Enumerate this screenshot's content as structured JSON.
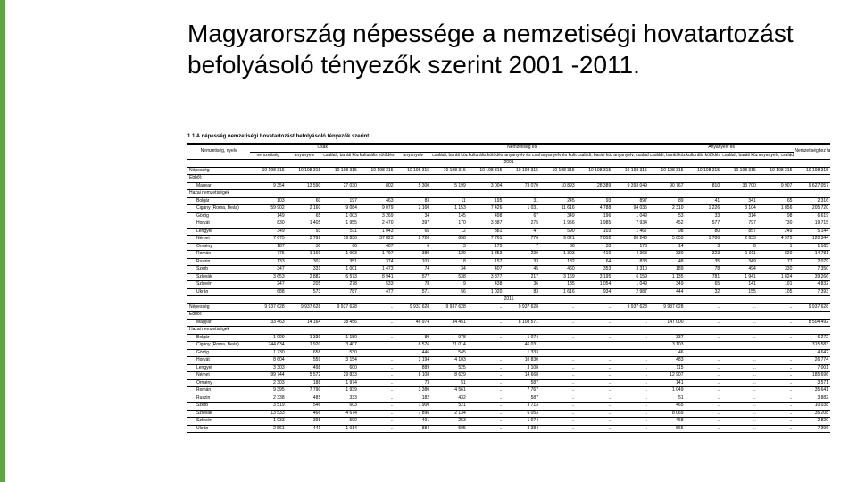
{
  "title": "Magyarország népessége a nemzetiségi hovatartozást befolyásoló tényezők szerint 2001 -2011.",
  "accent_color": "#5ba843",
  "table": {
    "caption": "1.1 A népesség nemzetiségi hovatartozást befolyásoló tényezők szerint",
    "head": {
      "group": "Nemzetiség, nyelv",
      "sections": [
        "Csak",
        "Nemzetiség és",
        "Anyanyelv és"
      ],
      "total": "Nemzetiséghez tartozó",
      "subcols": [
        "nemzetiség",
        "anyanyelv",
        "családi, baráti közösségben használt nyelv",
        "kulturális kötődés",
        "anyanyelv",
        "családi, baráti közösségben használt nyelv",
        "kulturális kötődés",
        "anyanyelv és családi, baráti közösségben használt nyelv",
        "anyanyelv és kulturális kötődés",
        "családi, baráti közösségben használt nyelv és kulturális kötődés",
        "anyanyelv, családi, baráti közösségben használt nyelv és kulturális kötődés",
        "családi, baráti közösségben használt nyelv",
        "kulturális kötődés",
        "családi, baráti közösségben használt nyelv és kulturális kötődés",
        "anyanyelv, családi, baráti közösségben használt nyelv és kulturális kötődés"
      ]
    },
    "years": [
      "2001",
      "2011"
    ],
    "blocks": [
      {
        "year": "2001",
        "totalRow": {
          "label": "Népesség",
          "vals": [
            "10 198 315",
            "10 198 315",
            "10 198 315",
            "10 198 315",
            "10 198 315",
            "10 198 315",
            "10 198 315",
            "10 198 315",
            "10 198 315",
            "10 198 315",
            "10 198 315",
            "10 198 315",
            "10 198 315",
            "10 198 315",
            "10 198 315",
            "10 198 315"
          ]
        },
        "subhead": "Ebből:",
        "magyar": {
          "label": "Magyar",
          "vals": [
            "9 354",
            "13 590",
            "27 030",
            "802",
            "5 300",
            "5 199",
            "3 004",
            "73 070",
            "10 893",
            "28 389",
            "9 393 049",
            "90 767",
            "810",
            "33 700",
            "9 907",
            "9 627 057"
          ]
        },
        "groupLabel": "Hazai nemzetiségek",
        "rows": [
          {
            "label": "Bolgár",
            "vals": [
              "103",
              "60",
              "197",
              "463",
              "83",
              "11",
              "195",
              "31",
              "245",
              "93",
              "897",
              "89",
              "41",
              "341",
              "65",
              "2 316"
            ]
          },
          {
            "label": "Cigány (Roma, Beás)",
            "vals": [
              "59 902",
              "2 160",
              "9 084",
              "9 079",
              "2 160",
              "1 153",
              "7 426",
              "1 031",
              "11 616",
              "4 788",
              "94 035",
              "2 310",
              "1 226",
              "3 104",
              "1 856",
              "205 720"
            ]
          },
          {
            "label": "Görög",
            "vals": [
              "149",
              "65",
              "1 003",
              "3 269",
              "34",
              "145",
              "498",
              "67",
              "349",
              "196",
              "1 049",
              "53",
              "33",
              "314",
              "98",
              "6 619"
            ]
          },
          {
            "label": "Horvát",
            "vals": [
              "830",
              "1 405",
              "1 955",
              "2 470",
              "397",
              "170",
              "3 887",
              "275",
              "1 956",
              "1 985",
              "7 934",
              "452",
              "577",
              "797",
              "730",
              "19 715"
            ]
          },
          {
            "label": "Lengyel",
            "vals": [
              "349",
              "93",
              "511",
              "1 043",
              "65",
              "12",
              "381",
              "47",
              "590",
              "103",
              "1 467",
              "98",
              "80",
              "857",
              "249",
              "5 144"
            ]
          },
          {
            "label": "Német",
            "vals": [
              "7 675",
              "3 792",
              "19 830",
              "37 823",
              "2 720",
              "858",
              "7 761",
              "776",
              "9 021",
              "7 052",
              "20 240",
              "5 053",
              "1 700",
              "2 633",
              "4 975",
              "120 344"
            ]
          },
          {
            "label": "Örmény",
            "vals": [
              "187",
              "30",
              "66",
              "407",
              "6",
              "3",
              "175",
              "7",
              "30",
              "33",
              "173",
              "14",
              "3",
              "8",
              "1",
              "1 165"
            ]
          },
          {
            "label": "Román",
            "vals": [
              "775",
              "1 169",
              "1 093",
              "1 797",
              "380",
              "129",
              "1 353",
              "230",
              "1 303",
              "410",
              "4 363",
              "330",
              "323",
              "1 011",
              "820",
              "14 781"
            ]
          },
          {
            "label": "Ruszin",
            "vals": [
              "133",
              "307",
              "351",
              "374",
              "103",
              "18",
              "157",
              "33",
              "182",
              "64",
              "833",
              "48",
              "35",
              "349",
              "77",
              "2 079"
            ]
          },
          {
            "label": "Szerb",
            "vals": [
              "347",
              "331",
              "1 001",
              "1 473",
              "74",
              "34",
              "407",
              "45",
              "460",
              "353",
              "3 310",
              "189",
              "78",
              "494",
              "330",
              "7 350"
            ]
          },
          {
            "label": "Szlovák",
            "vals": [
              "3 653",
              "2 882",
              "6 573",
              "8 941",
              "577",
              "538",
              "3 877",
              "217",
              "3 169",
              "3 195",
              "6 159",
              "1 135",
              "781",
              "1 941",
              "1 824",
              "39 266"
            ]
          },
          {
            "label": "Szlovén",
            "vals": [
              "247",
              "205",
              "278",
              "533",
              "78",
              "9",
              "438",
              "36",
              "185",
              "1 054",
              "1 049",
              "349",
              "65",
              "141",
              "101",
              "4 832"
            ]
          },
          {
            "label": "Ukrán",
            "vals": [
              "688",
              "573",
              "787",
              "477",
              "571",
              "56",
              "1 020",
              "83",
              "1 616",
              "934",
              "2 987",
              "444",
              "32",
              "155",
              "105",
              "7 393"
            ]
          }
        ]
      },
      {
        "year": "2011",
        "totalRow": {
          "label": "Népesség",
          "vals": [
            "9 937 628",
            "9 937 628",
            "9 937 628",
            "..",
            "9 937 628",
            "9 937 628",
            "..",
            "9 937 628",
            "..",
            "..",
            "9 937 628",
            "9 937 628",
            "..",
            "..",
            "..",
            "9 937 628"
          ]
        },
        "subhead": "Ebből:",
        "magyar": {
          "label": "Magyar",
          "vals": [
            "33 463",
            "14 164",
            "38 456",
            "..",
            "46 974",
            "34 451",
            "..",
            "8 108 571",
            "..",
            "..",
            "..",
            "147 000",
            "..",
            "..",
            "..",
            "8 504 492"
          ]
        },
        "groupLabel": "Hazai nemzetiségek",
        "rows": [
          {
            "label": "Bolgár",
            "vals": [
              "1 099",
              "1 339",
              "1 180",
              "..",
              "80",
              "978",
              "..",
              "1 074",
              "..",
              "..",
              "..",
              "337",
              "..",
              "..",
              "..",
              "6 272"
            ]
          },
          {
            "label": "Cigány (Roma, Beás)",
            "vals": [
              "244 634",
              "1 920",
              "3 407",
              "..",
              "8 576",
              "21 014",
              "..",
              "46 031",
              "..",
              "..",
              "..",
              "3 103",
              "..",
              "..",
              "..",
              "315 583"
            ]
          },
          {
            "label": "Görög",
            "vals": [
              "1 730",
              "658",
              "530",
              "..",
              "446",
              "545",
              "..",
              "1 333",
              "..",
              "..",
              "..",
              "46",
              "..",
              "..",
              "..",
              "4 642"
            ]
          },
          {
            "label": "Horvát",
            "vals": [
              "8 604",
              "559",
              "3 154",
              "..",
              "3 194",
              "4 103",
              "..",
              "10 830",
              "..",
              "..",
              "..",
              "483",
              "..",
              "..",
              "..",
              "26 774"
            ]
          },
          {
            "label": "Lengyel",
            "vals": [
              "3 303",
              "498",
              "600",
              "..",
              "889",
              "525",
              "..",
              "3 108",
              "..",
              "..",
              "..",
              "115",
              "..",
              "..",
              "..",
              "7 001"
            ]
          },
          {
            "label": "Német",
            "vals": [
              "99 744",
              "5 572",
              "29 833",
              "..",
              "8 108",
              "8 629",
              "..",
              "14 668",
              "..",
              "..",
              "..",
              "12 907",
              "..",
              "..",
              "..",
              "185 696"
            ]
          },
          {
            "label": "Örmény",
            "vals": [
              "2 303",
              "188",
              "1 974",
              "..",
              "73",
              "51",
              "..",
              "587",
              "..",
              "..",
              "..",
              "141",
              "..",
              "..",
              "..",
              "3 571"
            ]
          },
          {
            "label": "Román",
            "vals": [
              "9 395",
              "7 790",
              "1 939",
              "..",
              "3 380",
              "4 561",
              "..",
              "7 767",
              "..",
              "..",
              "..",
              "1 049",
              "..",
              "..",
              "..",
              "35 641"
            ]
          },
          {
            "label": "Ruszin",
            "vals": [
              "2 338",
              "485",
              "333",
              "..",
              "182",
              "432",
              "..",
              "587",
              "..",
              "..",
              "..",
              "51",
              "..",
              "..",
              "..",
              "3 882"
            ]
          },
          {
            "label": "Szerb",
            "vals": [
              "3 519",
              "546",
              "603",
              "..",
              "1 900",
              "521",
              "..",
              "3 713",
              "..",
              "..",
              "..",
              "465",
              "..",
              "..",
              "..",
              "10 038"
            ]
          },
          {
            "label": "Szlovák",
            "vals": [
              "13 533",
              "466",
              "4 674",
              "..",
              "7 896",
              "2 134",
              "..",
              "6 053",
              "..",
              "..",
              "..",
              "8 069",
              "..",
              "..",
              "..",
              "35 208"
            ]
          },
          {
            "label": "Szlovén",
            "vals": [
              "1 033",
              "398",
              "590",
              "..",
              "401",
              "253",
              "..",
              "1 074",
              "..",
              "..",
              "..",
              "468",
              "..",
              "..",
              "..",
              "2 820"
            ]
          },
          {
            "label": "Ukrán",
            "vals": [
              "2 561",
              "441",
              "1 014",
              "..",
              "884",
              "505",
              "..",
              "3 384",
              "..",
              "..",
              "..",
              "565",
              "..",
              "..",
              "..",
              "7 396"
            ]
          }
        ]
      }
    ]
  }
}
